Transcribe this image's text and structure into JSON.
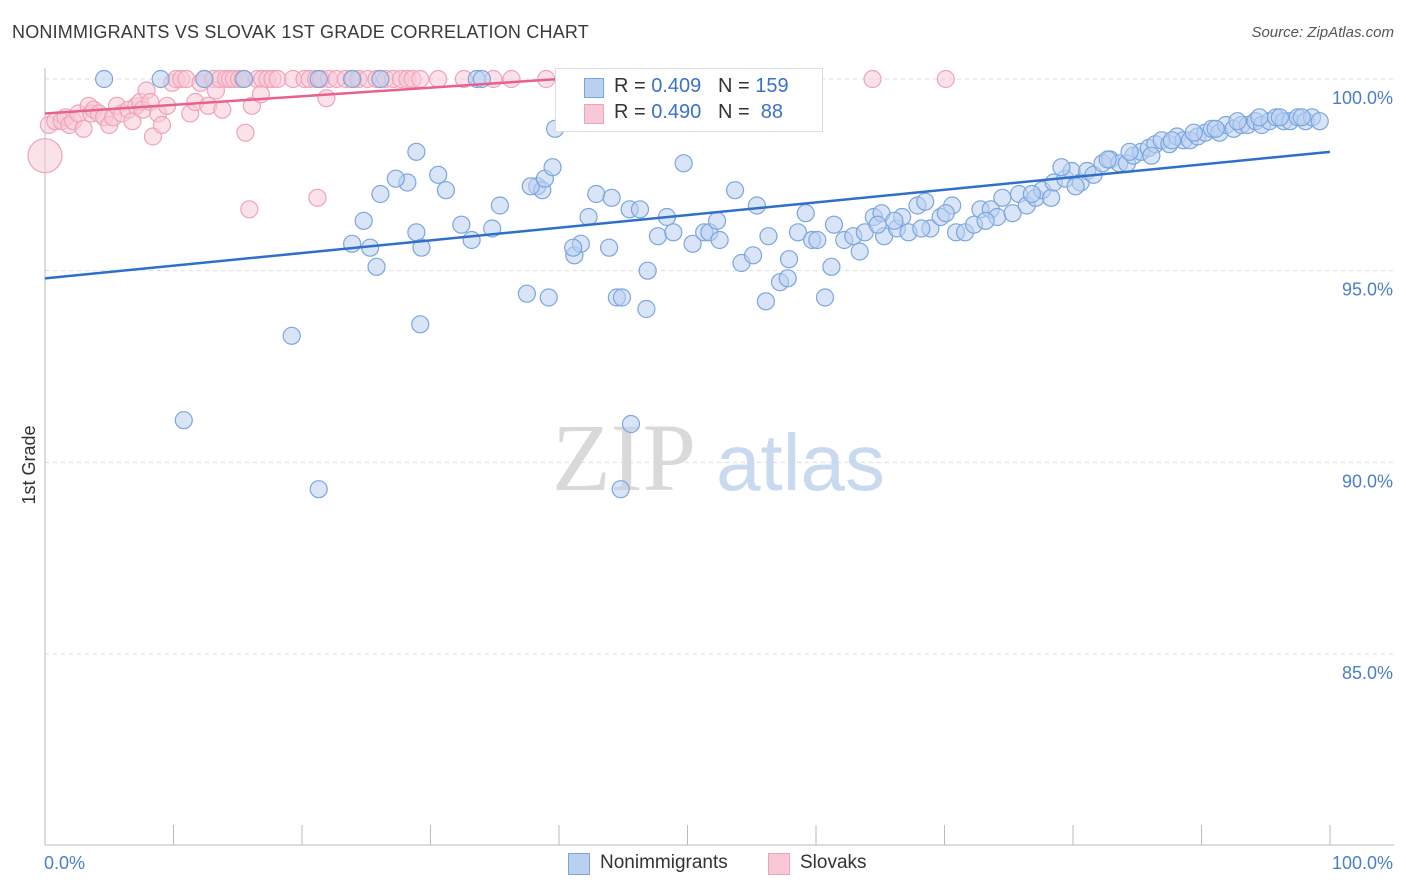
{
  "title": "NONIMMIGRANTS VS SLOVAK 1ST GRADE CORRELATION CHART",
  "source": "Source: ZipAtlas.com",
  "watermark": {
    "zip": "ZIP",
    "atlas": "atlas"
  },
  "legend_top": {
    "rows": [
      {
        "r_label": "R = ",
        "r_value": "0.409",
        "n_label": "N = ",
        "n_value": "159"
      },
      {
        "r_label": "R = ",
        "r_value": "0.490",
        "n_label": "N = ",
        "n_value": " 88"
      }
    ]
  },
  "legend_bottom": [
    "Nonimmigrants",
    "Slovaks"
  ],
  "colors": {
    "blue": "#7aa6e0",
    "blue_fill": "#b9d0f0",
    "blue_line": "#2f6fcc",
    "pink": "#f0a3b9",
    "pink_fill": "#f8c8d6",
    "pink_line": "#e8608b",
    "tick_text": "#4a7fc7",
    "grid": "#dcdcdc"
  },
  "chart_data": {
    "type": "scatter",
    "title": "NONIMMIGRANTS VS SLOVAK 1ST GRADE CORRELATION CHART",
    "xlabel": "",
    "ylabel": "1st Grade",
    "xlim": [
      0,
      100
    ],
    "ylim": [
      80.5,
      100.6
    ],
    "x_tick_labels": [
      "0.0%",
      "100.0%"
    ],
    "y_ticks": [
      85,
      90,
      95,
      100
    ],
    "y_tick_labels": [
      "85.0%",
      "90.0%",
      "95.0%",
      "100.0%"
    ],
    "grid": true,
    "legend": "bottom",
    "series": [
      {
        "name": "Nonimmigrants",
        "r": 0.409,
        "n": 159,
        "trend": [
          [
            0,
            94.8
          ],
          [
            100,
            98.1
          ]
        ],
        "points": [
          [
            4.6,
            100
          ],
          [
            9,
            100
          ],
          [
            12.4,
            100
          ],
          [
            15.5,
            100
          ],
          [
            21.3,
            100
          ],
          [
            23.9,
            100
          ],
          [
            26.1,
            100
          ],
          [
            33.6,
            100
          ],
          [
            34,
            100
          ],
          [
            28.2,
            97.3
          ],
          [
            10.8,
            91.1
          ],
          [
            19.2,
            93.3
          ],
          [
            21.3,
            89.3
          ],
          [
            29.2,
            93.6
          ],
          [
            28.9,
            98.1
          ],
          [
            23.9,
            95.7
          ],
          [
            25.3,
            95.6
          ],
          [
            25.8,
            95.1
          ],
          [
            24.8,
            96.3
          ],
          [
            26.1,
            97
          ],
          [
            27.3,
            97.4
          ],
          [
            28.9,
            96
          ],
          [
            29.3,
            95.6
          ],
          [
            30.6,
            97.5
          ],
          [
            31.2,
            97.1
          ],
          [
            32.4,
            96.2
          ],
          [
            33.2,
            95.8
          ],
          [
            34.8,
            96.1
          ],
          [
            35.4,
            96.7
          ],
          [
            37.5,
            94.4
          ],
          [
            39.2,
            94.3
          ],
          [
            38.3,
            97.2
          ],
          [
            38.7,
            97.1
          ],
          [
            37.8,
            97.2
          ],
          [
            38.9,
            97.4
          ],
          [
            39.5,
            97.7
          ],
          [
            41.2,
            95.4
          ],
          [
            41.7,
            95.7
          ],
          [
            42.3,
            96.4
          ],
          [
            42.9,
            97
          ],
          [
            41.1,
            95.6
          ],
          [
            44.5,
            94.3
          ],
          [
            44.9,
            94.3
          ],
          [
            43.9,
            95.6
          ],
          [
            45.5,
            96.6
          ],
          [
            46.3,
            96.6
          ],
          [
            46.8,
            94
          ],
          [
            46.9,
            95
          ],
          [
            47.7,
            95.9
          ],
          [
            48.4,
            96.4
          ],
          [
            48.9,
            96
          ],
          [
            49.7,
            97.8
          ],
          [
            50.4,
            95.7
          ],
          [
            51.3,
            96
          ],
          [
            51.7,
            96
          ],
          [
            52.3,
            96.3
          ],
          [
            52.5,
            95.8
          ],
          [
            54.2,
            95.2
          ],
          [
            55.1,
            95.4
          ],
          [
            56.3,
            95.9
          ],
          [
            56.1,
            94.2
          ],
          [
            57.2,
            94.7
          ],
          [
            57.8,
            94.8
          ],
          [
            57.9,
            95.3
          ],
          [
            58.6,
            96
          ],
          [
            59.2,
            96.5
          ],
          [
            59.7,
            95.8
          ],
          [
            60.7,
            94.3
          ],
          [
            61.2,
            95.1
          ],
          [
            61.4,
            96.2
          ],
          [
            62.2,
            95.8
          ],
          [
            62.9,
            95.9
          ],
          [
            63.4,
            95.5
          ],
          [
            63.8,
            96
          ],
          [
            64.5,
            96.4
          ],
          [
            65.1,
            96.5
          ],
          [
            65.3,
            95.9
          ],
          [
            66.3,
            96.1
          ],
          [
            66.7,
            96.4
          ],
          [
            67.2,
            96
          ],
          [
            67.9,
            96.7
          ],
          [
            68.5,
            96.8
          ],
          [
            68.9,
            96.1
          ],
          [
            69.7,
            96.4
          ],
          [
            70.6,
            96.7
          ],
          [
            70.9,
            96
          ],
          [
            71.6,
            96
          ],
          [
            72.3,
            96.2
          ],
          [
            72.8,
            96.6
          ],
          [
            73.6,
            96.6
          ],
          [
            74.1,
            96.4
          ],
          [
            74.5,
            96.9
          ],
          [
            75.3,
            96.5
          ],
          [
            75.8,
            97
          ],
          [
            76.4,
            96.7
          ],
          [
            77.1,
            96.9
          ],
          [
            77.6,
            97.1
          ],
          [
            78.3,
            96.9
          ],
          [
            78.5,
            97.3
          ],
          [
            79.4,
            97.4
          ],
          [
            79.9,
            97.6
          ],
          [
            80.6,
            97.3
          ],
          [
            81.1,
            97.6
          ],
          [
            81.6,
            97.5
          ],
          [
            82.3,
            97.8
          ],
          [
            82.9,
            97.9
          ],
          [
            83.6,
            97.8
          ],
          [
            84.2,
            97.8
          ],
          [
            84.7,
            98
          ],
          [
            85.3,
            98.1
          ],
          [
            85.9,
            98.2
          ],
          [
            86.4,
            98.3
          ],
          [
            86.9,
            98.4
          ],
          [
            87.5,
            98.3
          ],
          [
            88.1,
            98.5
          ],
          [
            88.6,
            98.4
          ],
          [
            89.1,
            98.4
          ],
          [
            89.7,
            98.5
          ],
          [
            90.3,
            98.6
          ],
          [
            90.8,
            98.7
          ],
          [
            91.4,
            98.6
          ],
          [
            91.9,
            98.8
          ],
          [
            92.5,
            98.7
          ],
          [
            93.1,
            98.8
          ],
          [
            93.6,
            98.8
          ],
          [
            94.2,
            98.9
          ],
          [
            94.7,
            98.8
          ],
          [
            95.3,
            98.9
          ],
          [
            95.8,
            99
          ],
          [
            96.4,
            98.9
          ],
          [
            96.9,
            98.9
          ],
          [
            97.5,
            99
          ],
          [
            98.1,
            98.9
          ],
          [
            98.6,
            99
          ],
          [
            99.2,
            98.9
          ],
          [
            45.6,
            91
          ],
          [
            44.8,
            89.3
          ],
          [
            40.9,
            99.2
          ],
          [
            39.7,
            98.7
          ],
          [
            44.1,
            96.9
          ],
          [
            53.7,
            97.1
          ],
          [
            55.4,
            96.7
          ],
          [
            60.1,
            95.8
          ],
          [
            64.8,
            96.2
          ],
          [
            66.1,
            96.3
          ],
          [
            68.2,
            96.1
          ],
          [
            70.1,
            96.5
          ],
          [
            73.2,
            96.3
          ],
          [
            76.8,
            97
          ],
          [
            79.1,
            97.7
          ],
          [
            80.2,
            97.2
          ],
          [
            82.7,
            97.9
          ],
          [
            84.4,
            98.1
          ],
          [
            86.1,
            98
          ],
          [
            87.7,
            98.4
          ],
          [
            89.4,
            98.6
          ],
          [
            91.1,
            98.7
          ],
          [
            92.8,
            98.9
          ],
          [
            94.5,
            99
          ],
          [
            96.1,
            99
          ],
          [
            97.8,
            99
          ]
        ]
      },
      {
        "name": "Slovaks",
        "r": 0.49,
        "n": 88,
        "trend": [
          [
            0,
            99.1
          ],
          [
            40,
            100.0
          ]
        ],
        "points": [
          [
            0,
            98
          ],
          [
            0.3,
            98.8
          ],
          [
            0.8,
            98.9
          ],
          [
            1.3,
            98.9
          ],
          [
            1.6,
            99
          ],
          [
            1.9,
            98.8
          ],
          [
            2.2,
            98.9
          ],
          [
            2.6,
            99.1
          ],
          [
            3,
            98.7
          ],
          [
            3.4,
            99.3
          ],
          [
            3.6,
            99.1
          ],
          [
            3.8,
            99.2
          ],
          [
            4.2,
            99.1
          ],
          [
            4.6,
            99
          ],
          [
            5,
            98.8
          ],
          [
            5.3,
            99
          ],
          [
            5.6,
            99.3
          ],
          [
            6,
            99.1
          ],
          [
            6.5,
            99.2
          ],
          [
            6.8,
            98.9
          ],
          [
            7.1,
            99.3
          ],
          [
            7.4,
            99.4
          ],
          [
            7.6,
            99.2
          ],
          [
            7.9,
            99.7
          ],
          [
            8.2,
            99.4
          ],
          [
            8.4,
            98.5
          ],
          [
            8.8,
            99.1
          ],
          [
            9.1,
            98.8
          ],
          [
            9.5,
            99.3
          ],
          [
            9.9,
            99.9
          ],
          [
            10.2,
            100
          ],
          [
            10.6,
            100
          ],
          [
            11,
            100
          ],
          [
            11.3,
            99.1
          ],
          [
            11.7,
            99.4
          ],
          [
            12.1,
            99.9
          ],
          [
            12.4,
            100
          ],
          [
            12.7,
            99.3
          ],
          [
            13.1,
            100
          ],
          [
            13.3,
            99.7
          ],
          [
            13.6,
            100
          ],
          [
            13.8,
            99.2
          ],
          [
            14.1,
            100
          ],
          [
            14.4,
            100
          ],
          [
            14.7,
            100
          ],
          [
            15.1,
            100
          ],
          [
            15.4,
            100
          ],
          [
            15.6,
            98.6
          ],
          [
            15.9,
            96.6
          ],
          [
            16.1,
            99.3
          ],
          [
            16.5,
            100
          ],
          [
            16.9,
            100
          ],
          [
            17.3,
            100
          ],
          [
            17.7,
            100
          ],
          [
            18.1,
            100
          ],
          [
            19.3,
            100
          ],
          [
            20.2,
            100
          ],
          [
            20.6,
            100
          ],
          [
            21.1,
            100
          ],
          [
            21.5,
            100
          ],
          [
            22.1,
            100
          ],
          [
            22.7,
            100
          ],
          [
            23.4,
            100
          ],
          [
            24,
            100
          ],
          [
            24.4,
            100
          ],
          [
            25.1,
            100
          ],
          [
            25.8,
            100
          ],
          [
            26.5,
            100
          ],
          [
            27.1,
            100
          ],
          [
            27.7,
            100
          ],
          [
            28.2,
            100
          ],
          [
            28.6,
            100
          ],
          [
            29.2,
            100
          ],
          [
            30.6,
            100
          ],
          [
            32.6,
            100
          ],
          [
            34.9,
            100
          ],
          [
            36.3,
            100
          ],
          [
            39,
            100
          ],
          [
            41.1,
            100
          ],
          [
            42.7,
            100
          ],
          [
            44.9,
            100
          ],
          [
            47.8,
            100
          ],
          [
            51.4,
            100
          ],
          [
            52.6,
            100
          ],
          [
            59.8,
            100
          ],
          [
            64.4,
            100
          ],
          [
            70.1,
            100
          ],
          [
            21.2,
            96.9
          ],
          [
            16.8,
            99.6
          ],
          [
            21.9,
            99.5
          ]
        ]
      }
    ]
  }
}
